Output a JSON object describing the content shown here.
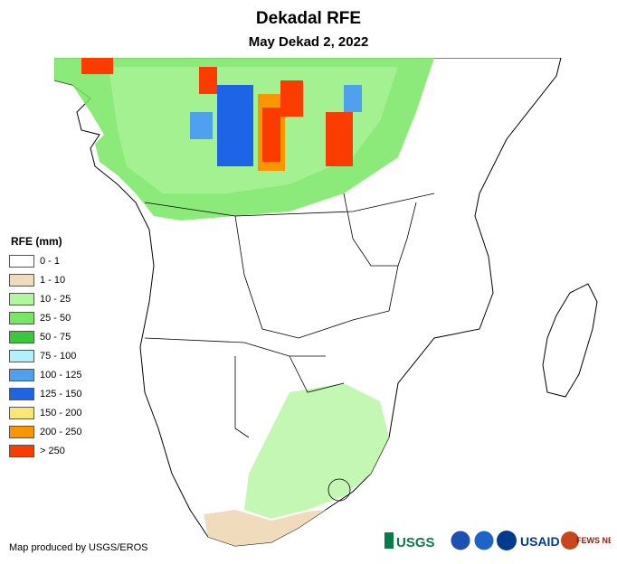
{
  "title": "Dekadal RFE",
  "subtitle": "May Dekad 2, 2022",
  "legend": {
    "title": "RFE (mm)",
    "items": [
      {
        "label": "0 - 1",
        "color": "#ffffff"
      },
      {
        "label": "1 - 10",
        "color": "#f0dcbc"
      },
      {
        "label": "10 - 25",
        "color": "#b4f5a0"
      },
      {
        "label": "25 - 50",
        "color": "#78e664"
      },
      {
        "label": "50 - 75",
        "color": "#3cc83c"
      },
      {
        "label": "75 - 100",
        "color": "#b4f0fa"
      },
      {
        "label": "100 - 125",
        "color": "#50a0f0"
      },
      {
        "label": "125 - 150",
        "color": "#1e64e6"
      },
      {
        "label": "150 - 200",
        "color": "#fae678"
      },
      {
        "label": "200 - 250",
        "color": "#fa9600"
      },
      {
        "label": "> 250",
        "color": "#fa3c00"
      }
    ]
  },
  "footer": "Map produced by USGS/EROS",
  "logos": {
    "usgs": "USGS",
    "usaid": "USAID",
    "fews": "FEWS NET"
  }
}
